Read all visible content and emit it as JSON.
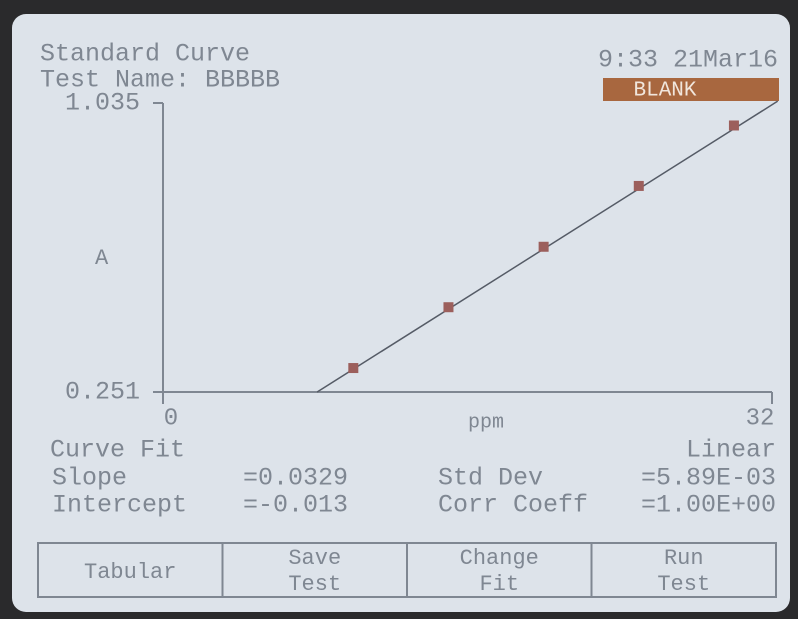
{
  "header": {
    "title": "Standard Curve",
    "test_name": "Test Name: BBBBB",
    "time": "9:33 21Mar16",
    "status": "BLANK"
  },
  "chart_data": {
    "type": "scatter",
    "x": [
      10,
      15,
      20,
      25,
      30
    ],
    "values": [
      0.316,
      0.481,
      0.645,
      0.81,
      0.974
    ],
    "color": "#9c5f5c",
    "xlim": [
      0,
      32
    ],
    "ylim": [
      0.251,
      1.035
    ],
    "xticks": [
      0,
      32
    ],
    "yticks": [
      0.251,
      1.035
    ],
    "x_label": "ppm",
    "y_label": "A",
    "fit_line": {
      "x": [
        8.1,
        32.3
      ],
      "values": [
        0.251,
        1.04
      ],
      "color": "#555b66"
    }
  },
  "results": {
    "curve_fit": "Curve Fit",
    "fit_type": "Linear",
    "rows": [
      [
        "Slope",
        "=0.0329",
        "Std Dev",
        "=5.89E-03"
      ],
      [
        "Intercept",
        "=-0.013",
        "Corr Coeff",
        "=1.00E+00"
      ]
    ]
  },
  "buttons": [
    [
      "Tabular"
    ],
    [
      "Save",
      "Test"
    ],
    [
      "Change",
      "Fit"
    ],
    [
      "Run",
      "Test"
    ]
  ]
}
